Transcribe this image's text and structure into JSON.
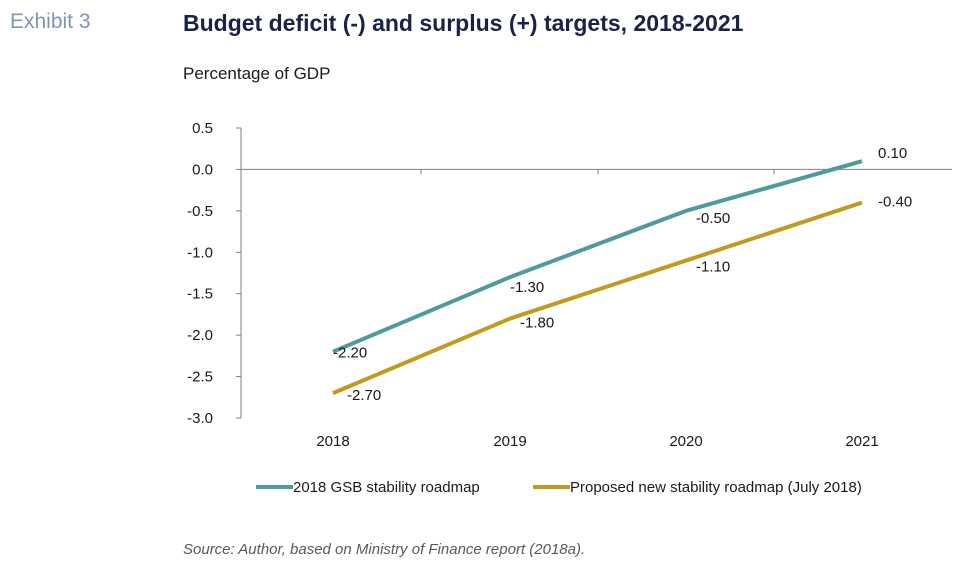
{
  "exhibit_label": "Exhibit 3",
  "title": "Budget deficit (-) and surplus (+) targets, 2018-2021",
  "subtitle": "Percentage of GDP",
  "source": "Source: Author, based on Ministry of Finance report (2018a).",
  "chart_data": {
    "type": "line",
    "title": "Budget deficit (-) and surplus (+) targets, 2018-2021",
    "ylabel": "Percentage of GDP",
    "xlabel": "",
    "categories": [
      "2018",
      "2019",
      "2020",
      "2021"
    ],
    "ylim": [
      -3.0,
      0.5
    ],
    "yticks": [
      0.5,
      0.0,
      -0.5,
      -1.0,
      -1.5,
      -2.0,
      -2.5,
      -3.0
    ],
    "ytick_labels": [
      "0.5",
      "0.0",
      "-0.5",
      "-1.0",
      "-1.5",
      "-2.0",
      "-2.5",
      "-3.0"
    ],
    "grid": false,
    "legend_position": "bottom",
    "series": [
      {
        "name": "2018 GSB stability roadmap",
        "values": [
          -2.2,
          -1.3,
          -0.5,
          0.1
        ],
        "labels": [
          "-2.20",
          "-1.30",
          "-0.50",
          "0.10"
        ],
        "color": "#4f9a9c"
      },
      {
        "name": "Proposed new stability roadmap (July 2018)",
        "values": [
          -2.7,
          -1.8,
          -1.1,
          -0.4
        ],
        "labels": [
          "-2.70",
          "-1.80",
          "-1.10",
          "-0.40"
        ],
        "color": "#c29a1e"
      }
    ]
  }
}
